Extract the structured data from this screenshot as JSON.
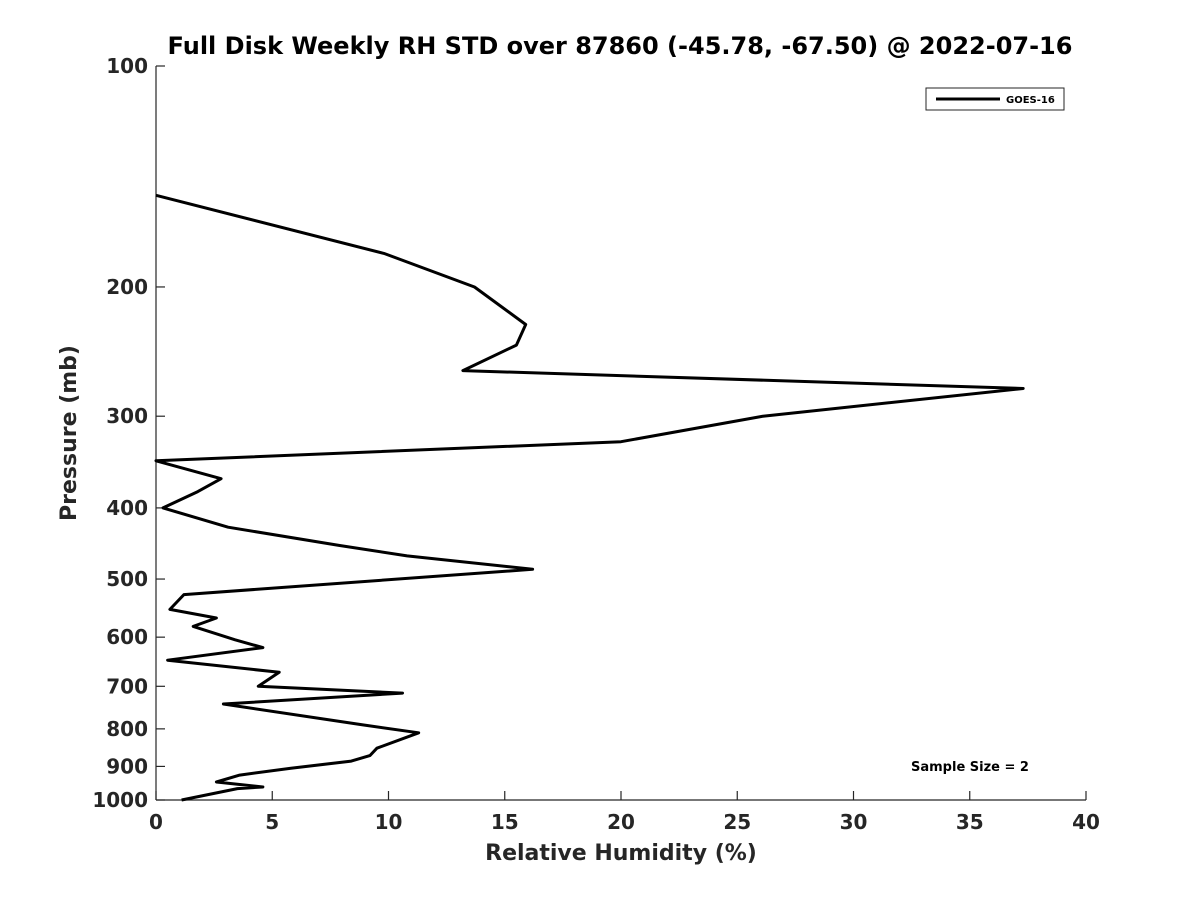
{
  "chart_data": {
    "type": "line",
    "title": "Full Disk Weekly RH STD over 87860 (-45.78, -67.50) @ 2022-07-16",
    "xlabel": "Relative Humidity (%)",
    "ylabel": "Pressure (mb)",
    "xlim": [
      0,
      40
    ],
    "ylim": [
      100,
      1000
    ],
    "yscale": "log",
    "reverse_y": true,
    "x_ticks": [
      0,
      5,
      10,
      15,
      20,
      25,
      30,
      35,
      40
    ],
    "y_ticks": [
      100,
      200,
      300,
      400,
      500,
      600,
      700,
      800,
      900,
      1000
    ],
    "grid": false,
    "legend_position": "top-right",
    "annotation": "Sample Size = 2",
    "series": [
      {
        "name": "GOES-16",
        "color": "#000000",
        "points": [
          {
            "x": 0.0,
            "y": 150
          },
          {
            "x": 9.8,
            "y": 180
          },
          {
            "x": 13.7,
            "y": 200
          },
          {
            "x": 15.9,
            "y": 225
          },
          {
            "x": 15.5,
            "y": 240
          },
          {
            "x": 13.2,
            "y": 260
          },
          {
            "x": 37.3,
            "y": 275
          },
          {
            "x": 26.1,
            "y": 300
          },
          {
            "x": 20.0,
            "y": 325
          },
          {
            "x": 0.0,
            "y": 345
          },
          {
            "x": 2.8,
            "y": 365
          },
          {
            "x": 1.8,
            "y": 380
          },
          {
            "x": 0.3,
            "y": 400
          },
          {
            "x": 3.1,
            "y": 425
          },
          {
            "x": 7.9,
            "y": 450
          },
          {
            "x": 10.8,
            "y": 465
          },
          {
            "x": 16.2,
            "y": 485
          },
          {
            "x": 1.2,
            "y": 525
          },
          {
            "x": 0.6,
            "y": 550
          },
          {
            "x": 2.6,
            "y": 565
          },
          {
            "x": 1.6,
            "y": 580
          },
          {
            "x": 3.4,
            "y": 605
          },
          {
            "x": 4.6,
            "y": 620
          },
          {
            "x": 0.5,
            "y": 645
          },
          {
            "x": 5.3,
            "y": 670
          },
          {
            "x": 4.4,
            "y": 700
          },
          {
            "x": 10.6,
            "y": 715
          },
          {
            "x": 2.9,
            "y": 740
          },
          {
            "x": 8.9,
            "y": 790
          },
          {
            "x": 11.3,
            "y": 810
          },
          {
            "x": 9.5,
            "y": 850
          },
          {
            "x": 9.2,
            "y": 870
          },
          {
            "x": 8.4,
            "y": 885
          },
          {
            "x": 5.8,
            "y": 905
          },
          {
            "x": 3.6,
            "y": 925
          },
          {
            "x": 2.6,
            "y": 945
          },
          {
            "x": 4.6,
            "y": 960
          },
          {
            "x": 3.5,
            "y": 965
          },
          {
            "x": 1.1,
            "y": 1000
          }
        ]
      }
    ]
  }
}
